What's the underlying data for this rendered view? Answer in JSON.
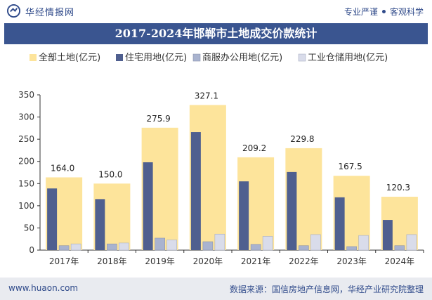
{
  "header": {
    "brand": "华经情报网",
    "slogan_left": "专业严谨",
    "slogan_right": "客观科学"
  },
  "footer": {
    "url": "www.huaon.com",
    "source": "数据来源：国信房地产信息网，华经产业研究院整理"
  },
  "colors": {
    "total": "#fde49b",
    "residential": "#4f5f8f",
    "commercial": "#a9b3cf",
    "industrial": "#d9dcea",
    "title_bg": "#3a5590"
  },
  "chart_data": {
    "type": "bar",
    "title": "2017-2024年邯郸市土地成交价款统计",
    "categories": [
      "2017年",
      "2018年",
      "2019年",
      "2020年",
      "2021年",
      "2022年",
      "2023年",
      "2024年"
    ],
    "series": [
      {
        "name": "全部土地(亿元)",
        "values": [
          164.0,
          150.0,
          275.9,
          327.1,
          209.2,
          229.8,
          167.5,
          120.3
        ],
        "labels": [
          "164.0",
          "150.0",
          "275.9",
          "327.1",
          "209.2",
          "229.8",
          "167.5",
          "120.3"
        ]
      },
      {
        "name": "住宅用地(亿元)",
        "values": [
          139,
          115,
          198,
          266,
          155,
          176,
          119,
          68
        ]
      },
      {
        "name": "商服办公用地(亿元)",
        "values": [
          10,
          14,
          27,
          19,
          13,
          10,
          8,
          10
        ]
      },
      {
        "name": "工业仓储用地(亿元)",
        "values": [
          14,
          16,
          23,
          36,
          31,
          35,
          33,
          35
        ]
      }
    ],
    "ylim": [
      0,
      350
    ],
    "yticks": [
      0,
      50,
      100,
      150,
      200,
      250,
      300,
      350
    ],
    "xlabel": "",
    "ylabel": "",
    "legend": "top"
  }
}
